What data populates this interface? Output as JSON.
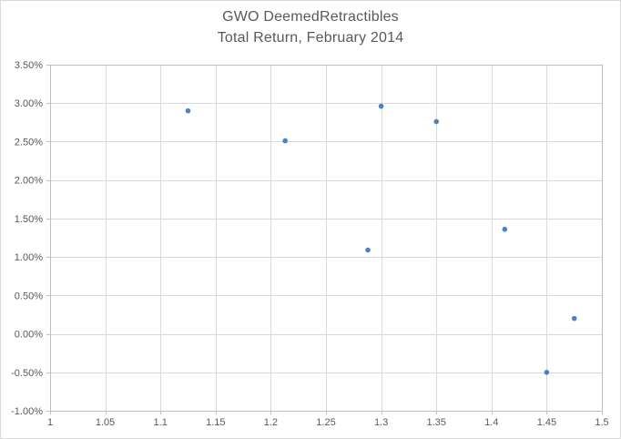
{
  "chart_data": {
    "type": "scatter",
    "title": "GWO DeemedRetractibles",
    "subtitle": "Total Return, February 2014",
    "xlabel": "",
    "ylabel": "",
    "xlim": [
      1.0,
      1.5
    ],
    "ylim": [
      -1.0,
      3.5
    ],
    "grid": true,
    "legend": false,
    "x_ticks": [
      1,
      1.05,
      1.1,
      1.15,
      1.2,
      1.25,
      1.3,
      1.35,
      1.4,
      1.45,
      1.5
    ],
    "x_tick_labels": [
      "1",
      "1.05",
      "1.1",
      "1.15",
      "1.2",
      "1.25",
      "1.3",
      "1.35",
      "1.4",
      "1.45",
      "1.5"
    ],
    "y_ticks": [
      -1.0,
      -0.5,
      0.0,
      0.5,
      1.0,
      1.5,
      2.0,
      2.5,
      3.0,
      3.5
    ],
    "y_tick_labels": [
      "-1.00%",
      "-0.50%",
      "0.00%",
      "0.50%",
      "1.00%",
      "1.50%",
      "2.00%",
      "2.50%",
      "3.00%",
      "3.50%"
    ],
    "points": [
      {
        "x": 1.125,
        "y": 2.9
      },
      {
        "x": 1.213,
        "y": 2.51
      },
      {
        "x": 1.288,
        "y": 1.09
      },
      {
        "x": 1.3,
        "y": 2.96
      },
      {
        "x": 1.35,
        "y": 2.76
      },
      {
        "x": 1.412,
        "y": 1.36
      },
      {
        "x": 1.45,
        "y": -0.5
      },
      {
        "x": 1.475,
        "y": 0.2
      }
    ],
    "colors": {
      "marker": "#4E81BD",
      "gridline": "#D9D9D9",
      "axis_line": "#BFBFBF",
      "tick_text": "#595959",
      "title_text": "#595959",
      "chart_border": "#D9D9D9",
      "background": "#FFFFFF"
    }
  }
}
